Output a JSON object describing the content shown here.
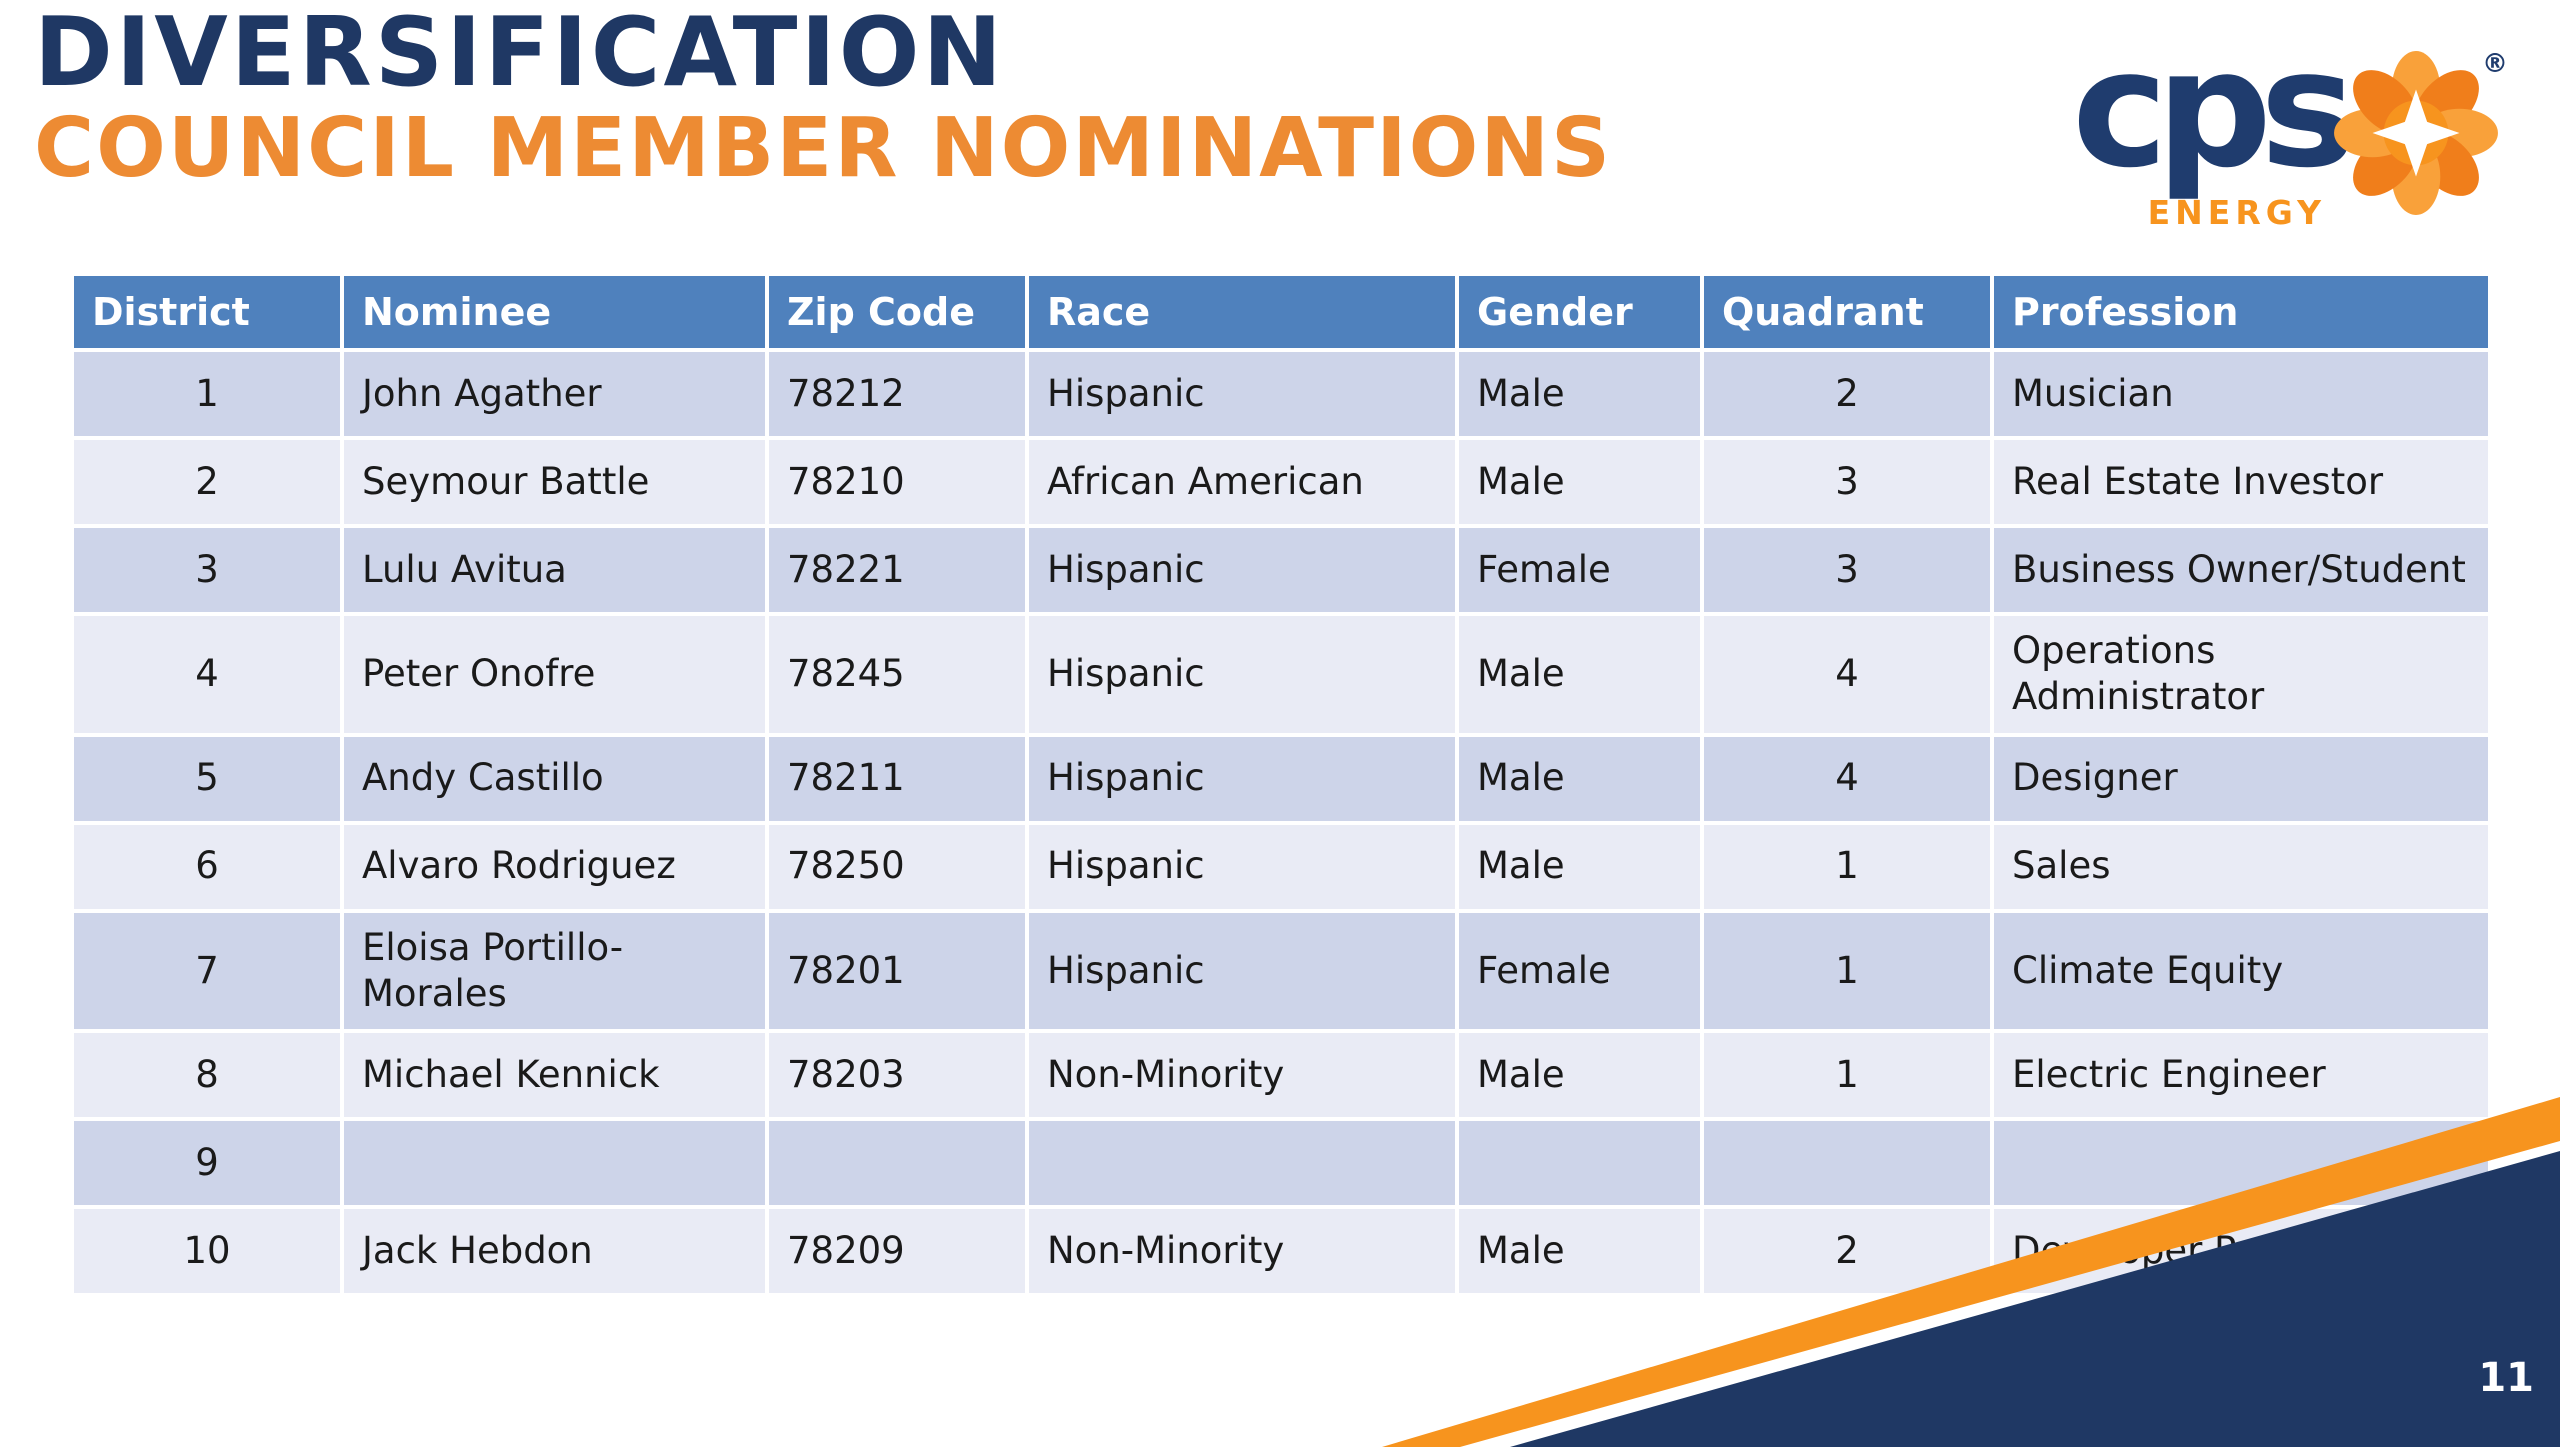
{
  "slide": {
    "title": "DIVERSIFICATION",
    "subtitle": "COUNCIL MEMBER NOMINATIONS",
    "page_number": "11"
  },
  "logo": {
    "brand": "cps",
    "sub": "ENERGY",
    "registered": "®"
  },
  "table": {
    "columns": [
      "District",
      "Nominee",
      "Zip Code",
      "Race",
      "Gender",
      "Quadrant",
      "Profession"
    ],
    "rows": [
      {
        "district": "1",
        "nominee": "John Agather",
        "zip": "78212",
        "race": "Hispanic",
        "gender": "Male",
        "quadrant": "2",
        "profession": "Musician"
      },
      {
        "district": "2",
        "nominee": "Seymour Battle",
        "zip": "78210",
        "race": "African American",
        "gender": "Male",
        "quadrant": "3",
        "profession": "Real Estate Investor"
      },
      {
        "district": "3",
        "nominee": "Lulu Avitua",
        "zip": "78221",
        "race": "Hispanic",
        "gender": "Female",
        "quadrant": "3",
        "profession": "Business Owner/Student"
      },
      {
        "district": "4",
        "nominee": "Peter Onofre",
        "zip": "78245",
        "race": "Hispanic",
        "gender": "Male",
        "quadrant": "4",
        "profession": "Operations Administrator"
      },
      {
        "district": "5",
        "nominee": "Andy Castillo",
        "zip": "78211",
        "race": "Hispanic",
        "gender": "Male",
        "quadrant": "4",
        "profession": "Designer"
      },
      {
        "district": "6",
        "nominee": "Alvaro Rodriguez",
        "zip": "78250",
        "race": "Hispanic",
        "gender": "Male",
        "quadrant": "1",
        "profession": "Sales"
      },
      {
        "district": "7",
        "nominee": "Eloisa Portillo-Morales",
        "zip": "78201",
        "race": "Hispanic",
        "gender": "Female",
        "quadrant": "1",
        "profession": "Climate Equity"
      },
      {
        "district": "8",
        "nominee": "Michael Kennick",
        "zip": "78203",
        "race": "Non-Minority",
        "gender": "Male",
        "quadrant": "1",
        "profession": "Electric Engineer"
      },
      {
        "district": "9",
        "nominee": "",
        "zip": "",
        "race": "",
        "gender": "",
        "quadrant": "",
        "profession": ""
      },
      {
        "district": "10",
        "nominee": "Jack Hebdon",
        "zip": "78209",
        "race": "Non-Minority",
        "gender": "Male",
        "quadrant": "2",
        "profession": "Developer Partner"
      }
    ]
  },
  "colors": {
    "title_navy": "#1F3864",
    "title_orange": "#ED8B33",
    "table_header_bg": "#4F81BD",
    "row_shade_dark": "#CDD4E9",
    "row_shade_light": "#E9EBF5",
    "swoosh_orange": "#F7941E",
    "swoosh_navy": "#1F3864",
    "logo_navy": "#1F3C6E"
  }
}
